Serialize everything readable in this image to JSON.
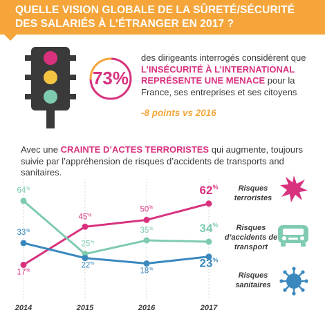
{
  "header": {
    "title": "QUELLE VISION GLOBALE DE LA SÛRETÉ/SÉCURITÉ DES SALARIÉS À L’ÉTRANGER EN 2017 ?",
    "color": "#f5a53a"
  },
  "intro": {
    "percent": "73%",
    "value": 73,
    "text_before": "des dirigeants interrogés considèrent que ",
    "highlight": "L’INSÉCURITÉ À L’INTERNATIONAL REPRÉSENTE UNE MENACE",
    "text_after": " pour la France, ses entreprises et ses citoyens",
    "delta": "-8 points vs 2016"
  },
  "subtitle": {
    "text_before": "Avec une ",
    "highlight": "CRAINTE D’ACTES TERRORISTES",
    "text_after": " qui augmente, toujours suivie par l’appréhension de risques d’accidents de transports and sanitaires."
  },
  "icons": {
    "traffic_light": "traffic-light-icon",
    "terror": "explosion-icon",
    "transport": "car-accident-icon",
    "health": "virus-icon"
  },
  "chart_data": {
    "type": "line",
    "x": [
      "2014",
      "2015",
      "2016",
      "2017"
    ],
    "ylim": [
      0,
      70
    ],
    "unit": "%",
    "series": [
      {
        "name": "Risques terroristes",
        "values": [
          17,
          45,
          50,
          62
        ],
        "color": "#d8317e"
      },
      {
        "name": "Risques d’accidents de transport",
        "values": [
          64,
          25,
          35,
          34
        ],
        "color": "#7fcbb0"
      },
      {
        "name": "Risques sanitaires",
        "values": [
          33,
          22,
          18,
          23
        ],
        "color": "#3a88bd"
      }
    ]
  }
}
